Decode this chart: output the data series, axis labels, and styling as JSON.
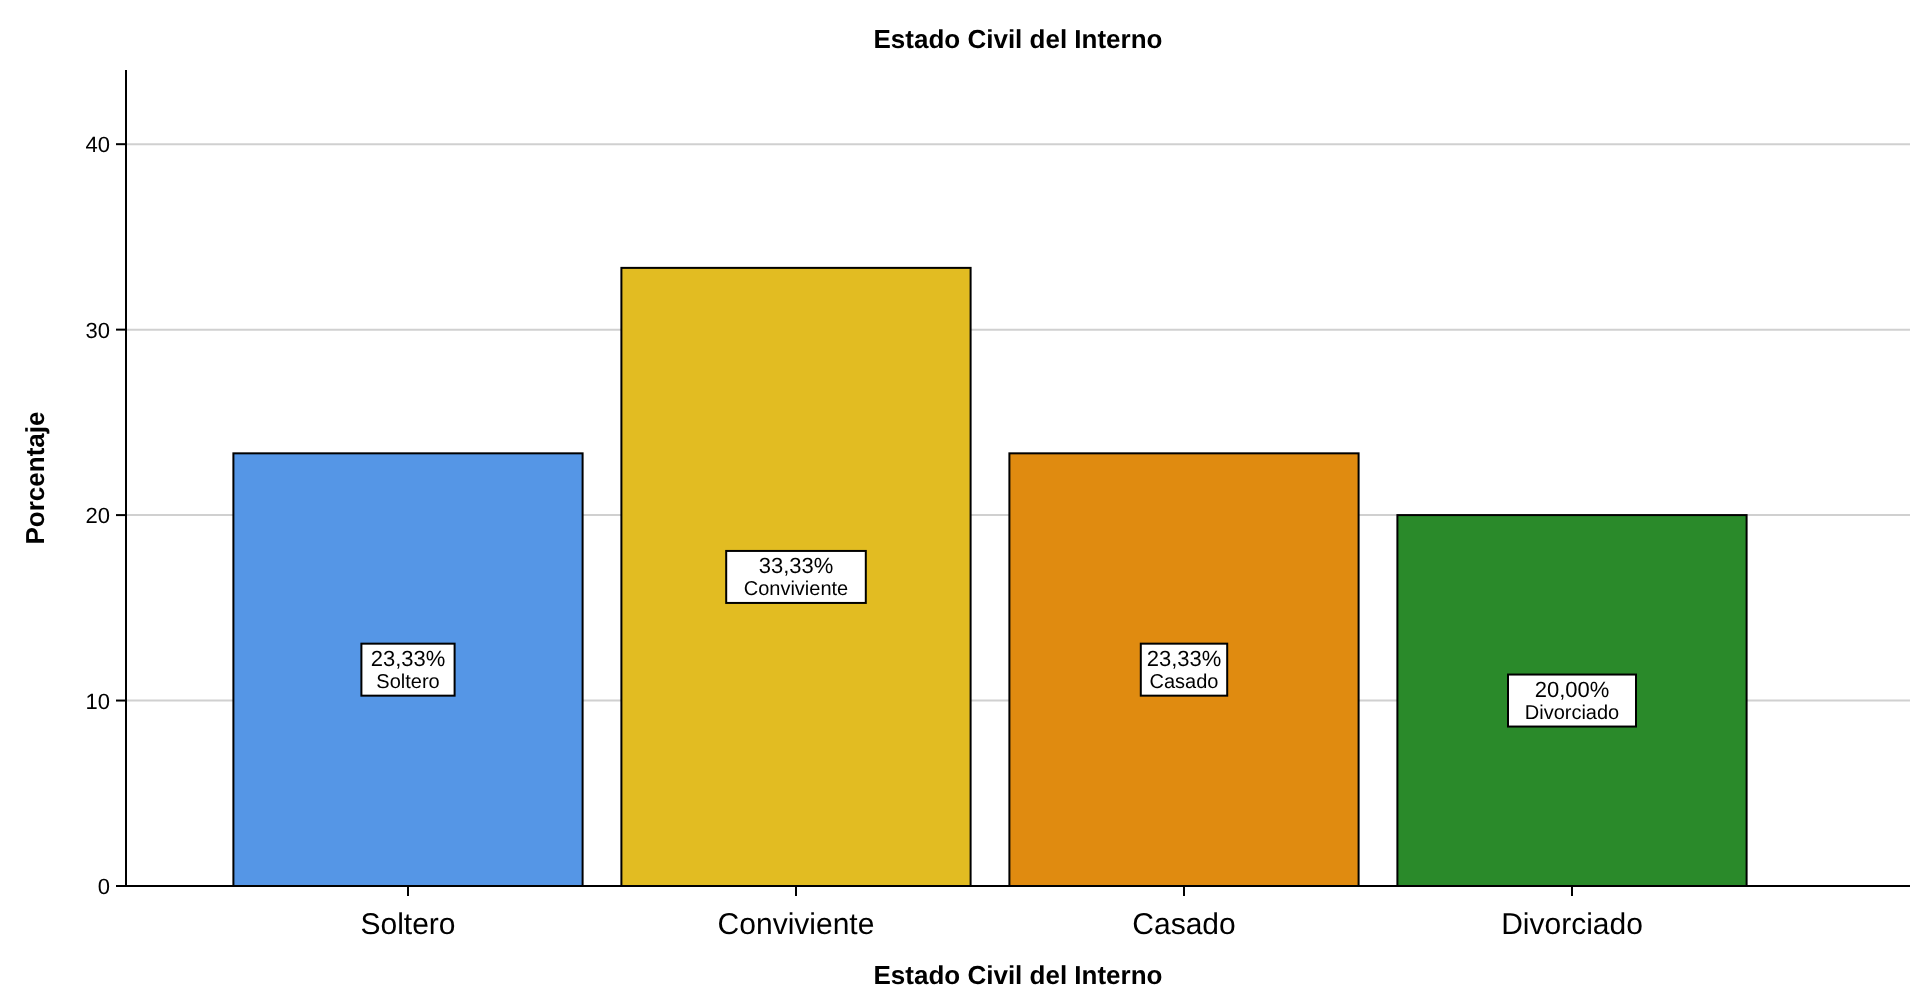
{
  "chart_data": {
    "type": "bar",
    "title": "Estado Civil del Interno",
    "xlabel": "Estado Civil del Interno",
    "ylabel": "Porcentaje",
    "categories": [
      "Soltero",
      "Conviviente",
      "Casado",
      "Divorciado"
    ],
    "values": [
      23.33,
      33.33,
      23.33,
      20.0
    ],
    "colors": [
      "#5596e6",
      "#e2bc22",
      "#e08b10",
      "#2a8a2a"
    ],
    "value_labels": [
      "23,33%",
      "33,33%",
      "23,33%",
      "20,00%"
    ],
    "ylim": [
      0,
      44
    ],
    "yticks": [
      0,
      10,
      20,
      30,
      40
    ],
    "grid": "y"
  }
}
